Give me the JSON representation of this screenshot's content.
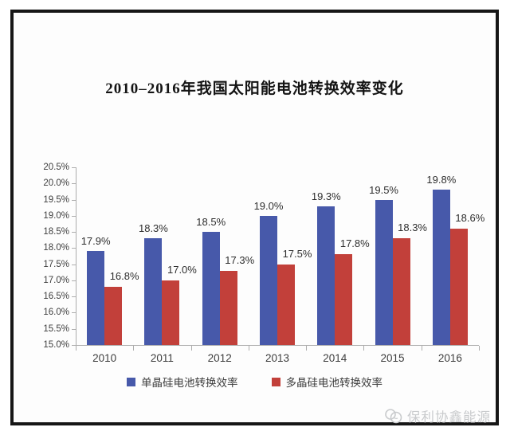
{
  "chart_data": {
    "type": "bar",
    "title": "2010–2016年我国太阳能电池转换效率变化",
    "categories": [
      "2010",
      "2011",
      "2012",
      "2013",
      "2014",
      "2015",
      "2016"
    ],
    "series": [
      {
        "name": "单晶硅电池转换效率",
        "color": "#4759AA",
        "values": [
          17.9,
          18.3,
          18.5,
          19.0,
          19.3,
          19.5,
          19.8
        ],
        "labels": [
          "17.9%",
          "18.3%",
          "18.5%",
          "19.0%",
          "19.3%",
          "19.5%",
          "19.8%"
        ]
      },
      {
        "name": "多晶硅电池转换效率",
        "color": "#C2403A",
        "values": [
          16.8,
          17.0,
          17.3,
          17.5,
          17.8,
          18.3,
          18.6
        ],
        "labels": [
          "16.8%",
          "17.0%",
          "17.3%",
          "17.5%",
          "17.8%",
          "18.3%",
          "18.6%"
        ]
      }
    ],
    "xlabel": "",
    "ylabel": "",
    "ylim": [
      15.0,
      20.5
    ],
    "ytick_step": 0.5,
    "ytick_labels": [
      "15.0%",
      "15.5%",
      "16.0%",
      "16.5%",
      "17.0%",
      "17.5%",
      "18.0%",
      "18.5%",
      "19.0%",
      "19.5%",
      "20.0%",
      "20.5%"
    ],
    "grid": false,
    "legend_position": "bottom"
  },
  "watermark": {
    "text": "保利协鑫能源"
  }
}
